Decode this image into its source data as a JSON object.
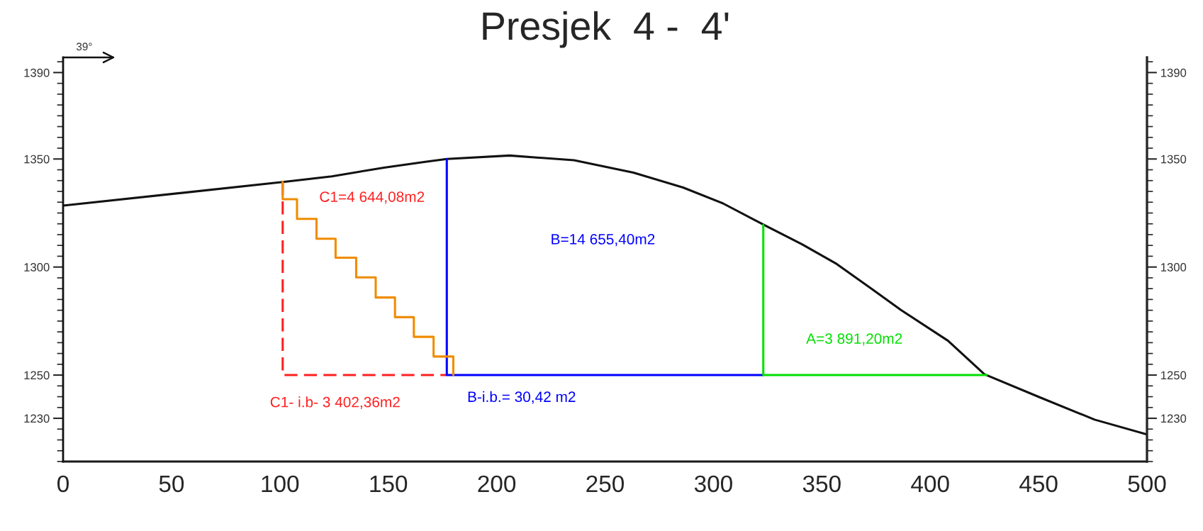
{
  "chart_data": {
    "type": "line",
    "title": "Presjek  4 -  4'",
    "xlim": [
      0,
      500
    ],
    "xticks": [
      0,
      50,
      100,
      150,
      200,
      250,
      300,
      350,
      400,
      450,
      500
    ],
    "ylim": [
      1210,
      1397
    ],
    "yticks": [
      1230,
      1250,
      1300,
      1350,
      1390
    ],
    "y2lim": [
      1210,
      1397
    ],
    "y2ticks": [
      1230,
      1250,
      1300,
      1350,
      1390
    ],
    "grid": false,
    "marker": "none",
    "series": [
      {
        "color": "#111111",
        "line_style": "solid",
        "x": [
          0,
          102,
          124,
          148,
          167.1,
          177,
          206,
          235.7,
          263.1,
          286,
          304.3,
          323.1,
          340.9,
          356.9,
          372.9,
          386.5,
          408.2,
          425,
          450.6,
          475.8,
          500
        ],
        "values": [
          1328.4,
          1339.4,
          1342,
          1346,
          1348.7,
          1350,
          1351.6,
          1349.4,
          1343.7,
          1336.8,
          1329.5,
          1319.6,
          1310.5,
          1301.4,
          1290,
          1280.1,
          1265.9,
          1250.4,
          1239.7,
          1229.4,
          1222.5
        ]
      },
      {
        "color": "#ff2020",
        "line_style": "dashed",
        "x": [
          101.3,
          101.3,
          177
        ],
        "values": [
          1339.4,
          1250,
          1250
        ]
      },
      {
        "color": "#0000ff",
        "line_style": "solid",
        "x": [
          177,
          177,
          323
        ],
        "values": [
          1350,
          1250,
          1250
        ]
      },
      {
        "color": "#00e000",
        "line_style": "solid",
        "x": [
          323,
          323,
          426
        ],
        "values": [
          1319.5,
          1250,
          1250
        ]
      },
      {
        "type": "step",
        "color": "#f08c00",
        "line_style": "solid",
        "x": [
          101.3,
          107.9,
          116.9,
          125.7,
          135.2,
          144.2,
          153.1,
          161.8,
          170.9,
          180.0,
          180.0
        ],
        "values": [
          1339.4,
          1331.4,
          1322.3,
          1313.1,
          1304.3,
          1295.2,
          1285.9,
          1276.8,
          1267.7,
          1258.6,
          1250
        ]
      }
    ],
    "annotations": [
      "39°",
      "C1=4 644,08m2",
      "B=14 655,40m2",
      "A=3 891,20m2",
      "C1- i.b- 3 402,36m2",
      "B-i.b.= 30,42 m2"
    ]
  }
}
